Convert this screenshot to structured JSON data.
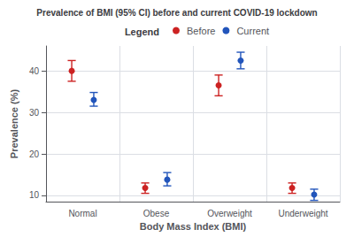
{
  "chart_data": {
    "type": "errorbar",
    "title": "Prevalence of BMI (95% CI) before and current COVID-19 lockdown",
    "xlabel": "Body Mass Index (BMI)",
    "ylabel": "Prevalence (%)",
    "categories": [
      "Normal",
      "Obese",
      "Overweight",
      "Underweight"
    ],
    "series": [
      {
        "name": "Before",
        "color": "#cc2222",
        "values": [
          40.0,
          11.8,
          36.5,
          11.8
        ],
        "ci_lower": [
          37.5,
          10.5,
          34.0,
          10.5
        ],
        "ci_upper": [
          42.5,
          13.0,
          39.0,
          13.0
        ]
      },
      {
        "name": "Current",
        "color": "#2255bb",
        "values": [
          33.0,
          13.8,
          42.5,
          10.2
        ],
        "ci_lower": [
          31.5,
          12.3,
          40.5,
          8.8
        ],
        "ci_upper": [
          34.8,
          15.5,
          44.5,
          11.5
        ]
      }
    ],
    "ylim": [
      8.5,
      46
    ],
    "yticks": [
      10,
      20,
      30,
      40
    ],
    "grid": true,
    "legend": "top",
    "legend_title": "Legend",
    "marker": "circle"
  }
}
